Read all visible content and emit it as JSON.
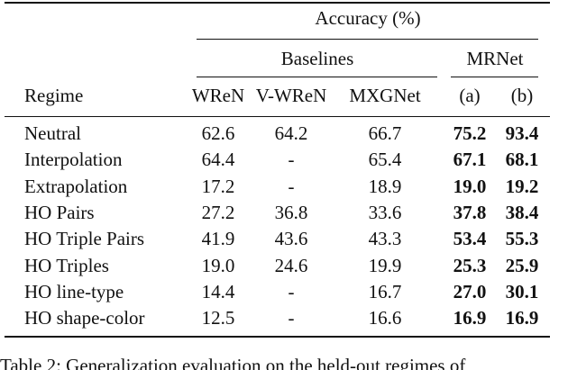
{
  "table": {
    "header": {
      "group": "Accuracy (%)",
      "subgroups": [
        "Baselines",
        "MRNet"
      ],
      "columns": [
        "Regime",
        "WReN",
        "V-WReN",
        "MXGNet",
        "(a)",
        "(b)"
      ]
    },
    "rows": [
      [
        "Neutral",
        "62.6",
        "64.2",
        "66.7",
        "75.2",
        "93.4"
      ],
      [
        "Interpolation",
        "64.4",
        "-",
        "65.4",
        "67.1",
        "68.1"
      ],
      [
        "Extrapolation",
        "17.2",
        "-",
        "18.9",
        "19.0",
        "19.2"
      ],
      [
        "HO Pairs",
        "27.2",
        "36.8",
        "33.6",
        "37.8",
        "38.4"
      ],
      [
        "HO Triple Pairs",
        "41.9",
        "43.6",
        "43.3",
        "53.4",
        "55.3"
      ],
      [
        "HO Triples",
        "19.0",
        "24.6",
        "19.9",
        "25.3",
        "25.9"
      ],
      [
        "HO line-type",
        "14.4",
        "-",
        "16.7",
        "27.0",
        "30.1"
      ],
      [
        "HO shape-color",
        "12.5",
        "-",
        "16.6",
        "16.9",
        "16.9"
      ]
    ]
  },
  "caption": "Table 2: Generalization evaluation on the held-out regimes of"
}
